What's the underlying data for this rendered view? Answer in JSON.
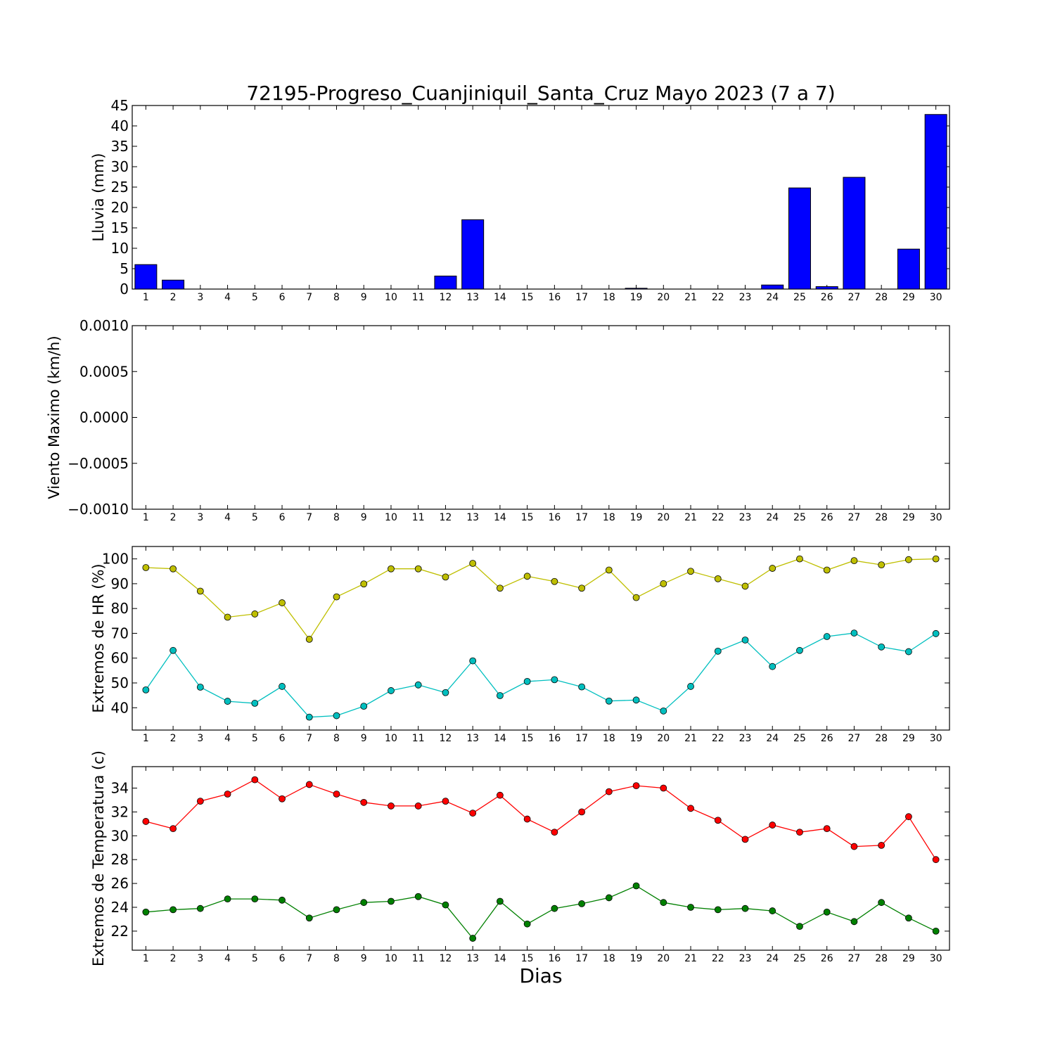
{
  "chart_data": [
    {
      "type": "bar",
      "title": "72195-Progreso_Cuanjiniquil_Santa_Cruz Mayo 2023  (7 a 7)",
      "ylabel": "Lluvia (mm)",
      "xlabel": "",
      "ylim": [
        0,
        45
      ],
      "yticks": [
        "0",
        "5",
        "10",
        "15",
        "20",
        "25",
        "30",
        "35",
        "40",
        "45"
      ],
      "categories": [
        "1",
        "2",
        "3",
        "4",
        "5",
        "6",
        "7",
        "8",
        "9",
        "10",
        "11",
        "12",
        "13",
        "14",
        "15",
        "16",
        "17",
        "18",
        "19",
        "20",
        "21",
        "22",
        "23",
        "24",
        "25",
        "26",
        "27",
        "28",
        "29",
        "30"
      ],
      "values": [
        6.0,
        2.2,
        0,
        0,
        0,
        0,
        0,
        0,
        0,
        0,
        0,
        3.2,
        17.0,
        0,
        0,
        0,
        0,
        0,
        0.2,
        0,
        0,
        0,
        0,
        1.0,
        24.8,
        0.6,
        27.4,
        0,
        9.8,
        42.8
      ],
      "color": "#0000ff"
    },
    {
      "type": "line",
      "ylabel": "Viento Maximo (km/h)",
      "xlabel": "",
      "ylim": [
        -0.001,
        0.001
      ],
      "yticks": [
        "−0.0010",
        "−0.0005",
        "0.0000",
        "0.0005",
        "0.0010"
      ],
      "categories": [
        "1",
        "2",
        "3",
        "4",
        "5",
        "6",
        "7",
        "8",
        "9",
        "10",
        "11",
        "12",
        "13",
        "14",
        "15",
        "16",
        "17",
        "18",
        "19",
        "20",
        "21",
        "22",
        "23",
        "24",
        "25",
        "26",
        "27",
        "28",
        "29",
        "30"
      ],
      "series": []
    },
    {
      "type": "line",
      "ylabel": "Extremos de HR (%)",
      "xlabel": "",
      "ylim": [
        31,
        105
      ],
      "yticks": [
        "40",
        "50",
        "60",
        "70",
        "80",
        "90",
        "100"
      ],
      "ytick_values": [
        40,
        50,
        60,
        70,
        80,
        90,
        100
      ],
      "categories": [
        "1",
        "2",
        "3",
        "4",
        "5",
        "6",
        "7",
        "8",
        "9",
        "10",
        "11",
        "12",
        "13",
        "14",
        "15",
        "16",
        "17",
        "18",
        "19",
        "20",
        "21",
        "22",
        "23",
        "24",
        "25",
        "26",
        "27",
        "28",
        "29",
        "30"
      ],
      "series": [
        {
          "color": "#bfbf00",
          "values": [
            96.5,
            96,
            87,
            76.5,
            77.8,
            82.3,
            67.6,
            84.7,
            89.9,
            96,
            96,
            92.7,
            98.2,
            88.2,
            93,
            90.9,
            88.2,
            95.5,
            84.4,
            90,
            95,
            92,
            89,
            96.2,
            100,
            95.5,
            99.3,
            97.6,
            99.7,
            100
          ]
        },
        {
          "color": "#00bfbf",
          "values": [
            47.2,
            63.1,
            48.3,
            42.6,
            41.8,
            48.6,
            36.2,
            36.8,
            40.6,
            46.9,
            49.2,
            46.1,
            58.9,
            44.9,
            50.6,
            51.3,
            48.4,
            42.7,
            43.1,
            38.7,
            48.6,
            62.8,
            67.3,
            56.6,
            63.1,
            68.7,
            70.1,
            64.5,
            62.6,
            69.9
          ]
        }
      ]
    },
    {
      "type": "line",
      "ylabel": "Extremos de Temperatura (c)",
      "xlabel": "Dias",
      "ylim": [
        20.4,
        35.8
      ],
      "yticks": [
        "22",
        "24",
        "26",
        "28",
        "30",
        "32",
        "34"
      ],
      "ytick_values": [
        22,
        24,
        26,
        28,
        30,
        32,
        34
      ],
      "categories": [
        "1",
        "2",
        "3",
        "4",
        "5",
        "6",
        "7",
        "8",
        "9",
        "10",
        "11",
        "12",
        "13",
        "14",
        "15",
        "16",
        "17",
        "18",
        "19",
        "20",
        "21",
        "22",
        "23",
        "24",
        "25",
        "26",
        "27",
        "28",
        "29",
        "30"
      ],
      "series": [
        {
          "color": "#ff0000",
          "values": [
            31.2,
            30.6,
            32.9,
            33.5,
            34.7,
            33.1,
            34.3,
            33.5,
            32.8,
            32.5,
            32.5,
            32.9,
            31.9,
            33.4,
            31.4,
            30.3,
            32,
            33.7,
            34.2,
            34,
            32.3,
            31.3,
            29.7,
            30.9,
            30.3,
            30.6,
            29.1,
            29.2,
            31.6,
            28
          ]
        },
        {
          "color": "#008000",
          "values": [
            23.6,
            23.8,
            23.9,
            24.7,
            24.7,
            24.6,
            23.1,
            23.8,
            24.4,
            24.5,
            24.9,
            24.2,
            21.4,
            24.5,
            22.6,
            23.9,
            24.3,
            24.8,
            25.8,
            24.4,
            24,
            23.8,
            23.9,
            23.7,
            22.4,
            23.6,
            22.8,
            24.4,
            23.1,
            22
          ]
        }
      ]
    }
  ]
}
